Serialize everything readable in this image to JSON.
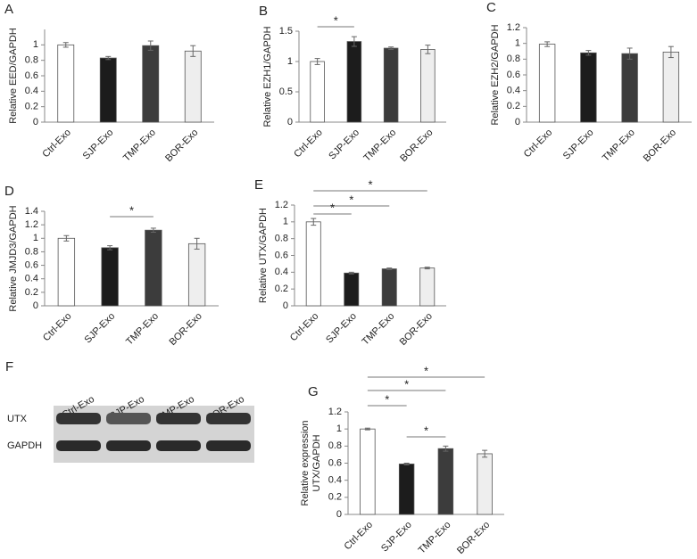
{
  "chart_data": [
    {
      "type": "bar",
      "title": "A",
      "ylabel": "Relative EED/GAPDH",
      "categories": [
        "Ctrl-Exo",
        "SJP-Exo",
        "TMP-Exo",
        "BOR-Exo"
      ],
      "values": [
        1.0,
        0.83,
        0.99,
        0.92
      ],
      "errors": [
        0.03,
        0.02,
        0.06,
        0.07
      ],
      "colors": [
        "#ffffff",
        "#1c1c1c",
        "#3c3c3c",
        "#eeeeee"
      ],
      "ylim": [
        0,
        1.2
      ],
      "yticks": [
        0,
        0.2,
        0.4,
        0.6,
        0.8,
        1
      ],
      "annotations": []
    },
    {
      "type": "bar",
      "title": "B",
      "ylabel": "Relative EZH1/GAPDH",
      "categories": [
        "Ctrl-Exo",
        "SJP-Exo",
        "TMP-Exo",
        "BOR-Exo"
      ],
      "values": [
        1.0,
        1.33,
        1.22,
        1.2
      ],
      "errors": [
        0.05,
        0.08,
        0.02,
        0.07
      ],
      "colors": [
        "#ffffff",
        "#1c1c1c",
        "#3c3c3c",
        "#eeeeee"
      ],
      "ylim": [
        0,
        1.5
      ],
      "yticks": [
        0,
        0.5,
        1,
        1.5
      ],
      "annotations": [
        {
          "text": "*",
          "between": [
            "Ctrl-Exo",
            "SJP-Exo"
          ]
        }
      ]
    },
    {
      "type": "bar",
      "title": "C",
      "ylabel": "Relative EZH2/GAPDH",
      "categories": [
        "Ctrl-Exo",
        "SJP-Exo",
        "TMP-Exo",
        "BOR-Exo"
      ],
      "values": [
        0.99,
        0.88,
        0.87,
        0.89
      ],
      "errors": [
        0.03,
        0.03,
        0.07,
        0.07
      ],
      "colors": [
        "#ffffff",
        "#1c1c1c",
        "#3c3c3c",
        "#eeeeee"
      ],
      "ylim": [
        0,
        1.2
      ],
      "yticks": [
        0,
        0.2,
        0.4,
        0.6,
        0.8,
        1,
        1.2
      ],
      "annotations": []
    },
    {
      "type": "bar",
      "title": "D",
      "ylabel": "Relative JMJD3/GAPDH",
      "categories": [
        "Ctrl-Exo",
        "SJP-Exo",
        "TMP-Exo",
        "BOR-Exo"
      ],
      "values": [
        1.0,
        0.86,
        1.12,
        0.92
      ],
      "errors": [
        0.04,
        0.03,
        0.03,
        0.08
      ],
      "colors": [
        "#ffffff",
        "#1c1c1c",
        "#3c3c3c",
        "#eeeeee"
      ],
      "ylim": [
        0,
        1.4
      ],
      "yticks": [
        0,
        0.2,
        0.4,
        0.6,
        0.8,
        1,
        1.2,
        1.4
      ],
      "annotations": [
        {
          "text": "*",
          "between": [
            "SJP-Exo",
            "TMP-Exo"
          ]
        }
      ]
    },
    {
      "type": "bar",
      "title": "E",
      "ylabel": "Relative UTX/GAPDH",
      "categories": [
        "Ctrl-Exo",
        "SJP-Exo",
        "TMP-Exo",
        "BOR-Exo"
      ],
      "values": [
        1.0,
        0.39,
        0.44,
        0.45
      ],
      "errors": [
        0.04,
        0.01,
        0.01,
        0.01
      ],
      "colors": [
        "#ffffff",
        "#1c1c1c",
        "#3c3c3c",
        "#eeeeee"
      ],
      "ylim": [
        0,
        1.2
      ],
      "yticks": [
        0,
        0.2,
        0.4,
        0.6,
        0.8,
        1,
        1.2
      ],
      "annotations": [
        {
          "text": "*",
          "between": [
            "Ctrl-Exo",
            "BOR-Exo"
          ]
        },
        {
          "text": "*",
          "between": [
            "Ctrl-Exo",
            "TMP-Exo"
          ]
        },
        {
          "text": "*",
          "between": [
            "Ctrl-Exo",
            "SJP-Exo"
          ]
        }
      ]
    },
    {
      "type": "bar",
      "title": "G",
      "ylabel": [
        "Relative expression",
        "UTX/GAPDH"
      ],
      "categories": [
        "Ctrl-Exo",
        "SJP-Exo",
        "TMP-Exo",
        "BOR-Exo"
      ],
      "values": [
        1.0,
        0.59,
        0.77,
        0.71
      ],
      "errors": [
        0.01,
        0.01,
        0.03,
        0.04
      ],
      "colors": [
        "#ffffff",
        "#1c1c1c",
        "#3c3c3c",
        "#eeeeee"
      ],
      "ylim": [
        0,
        1.2
      ],
      "yticks": [
        0,
        0.2,
        0.4,
        0.6,
        0.8,
        1,
        1.2
      ],
      "annotations": [
        {
          "text": "*",
          "between": [
            "Ctrl-Exo",
            "BOR-Exo"
          ]
        },
        {
          "text": "*",
          "between": [
            "Ctrl-Exo",
            "TMP-Exo"
          ]
        },
        {
          "text": "*",
          "between": [
            "Ctrl-Exo",
            "SJP-Exo"
          ]
        },
        {
          "text": "*",
          "between": [
            "SJP-Exo",
            "TMP-Exo"
          ]
        }
      ]
    }
  ],
  "blot": {
    "label": "F",
    "lanes": [
      "Ctrl-Exo",
      "SJP-Exo",
      "TMP-Exo",
      "BOR-Exo"
    ],
    "rows": [
      "UTX",
      "GAPDH"
    ]
  }
}
